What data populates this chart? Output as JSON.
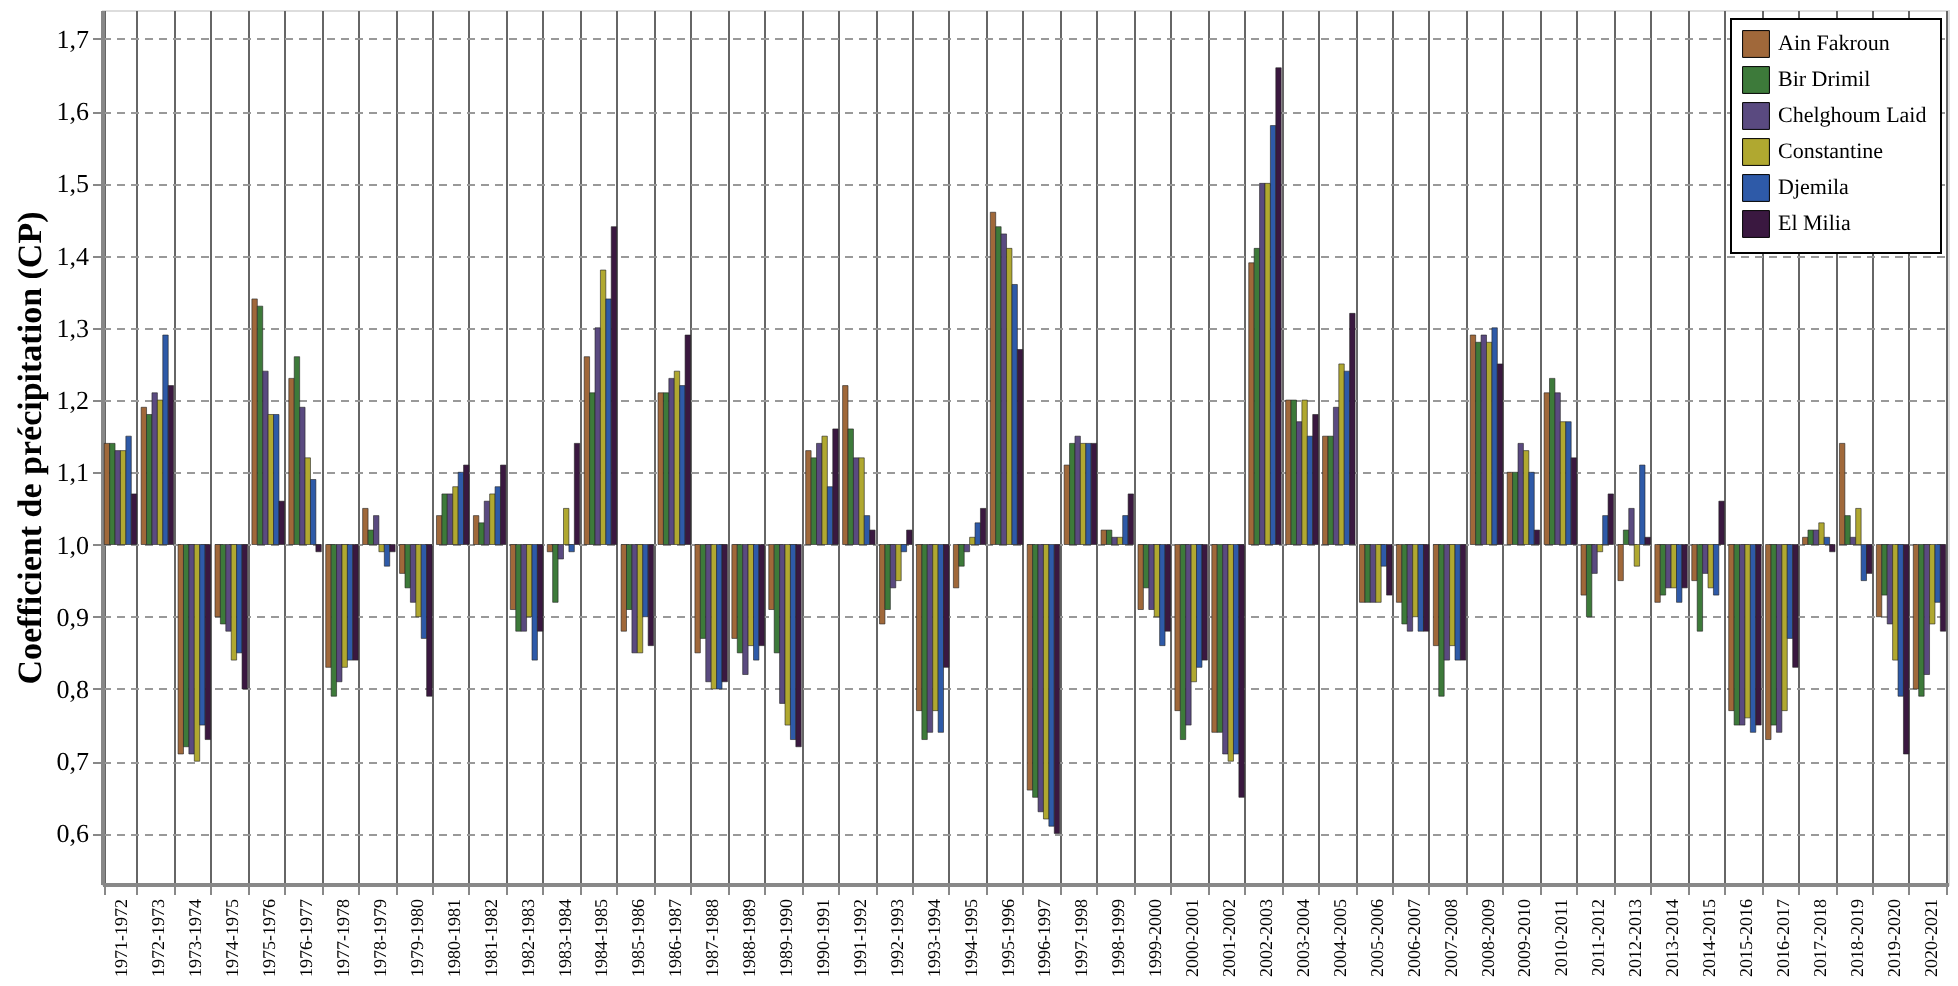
{
  "chart_data": {
    "type": "bar",
    "ylabel": "Coefficient de précipitation (CP)",
    "categories": [
      "1971-1972",
      "1972-1973",
      "1973-1974",
      "1974-1975",
      "1975-1976",
      "1976-1977",
      "1977-1978",
      "1978-1979",
      "1979-1980",
      "1980-1981",
      "1981-1982",
      "1982-1983",
      "1983-1984",
      "1984-1985",
      "1985-1986",
      "1986-1987",
      "1987-1988",
      "1988-1989",
      "1989-1990",
      "1990-1991",
      "1991-1992",
      "1992-1993",
      "1993-1994",
      "1994-1995",
      "1995-1996",
      "1996-1997",
      "1997-1998",
      "1998-1999",
      "1999-2000",
      "2000-2001",
      "2001-2002",
      "2002-2003",
      "2003-2004",
      "2004-2005",
      "2005-2006",
      "2006-2007",
      "2007-2008",
      "2008-2009",
      "2009-2010",
      "2010-2011",
      "2011-2012",
      "2012-2013",
      "2013-2014",
      "2014-2015",
      "2015-2016",
      "2016-2017",
      "2017-2018",
      "2018-2019",
      "2019-2020",
      "2020-2021"
    ],
    "series": [
      {
        "name": "Ain Fakroun",
        "color": "#a0683a",
        "base": [
          1,
          1,
          1,
          1,
          1,
          1,
          1,
          1,
          1,
          1,
          1,
          1,
          1,
          1,
          1,
          1,
          1,
          1,
          1,
          1,
          1,
          1,
          1,
          1,
          1,
          1,
          1,
          1,
          1,
          1,
          1,
          1,
          1,
          1,
          1,
          1,
          1,
          1,
          1,
          1,
          1,
          1,
          1,
          1,
          1,
          1,
          1,
          1,
          1,
          1
        ],
        "values": [
          0.14,
          0.19,
          -0.29,
          -0.1,
          0.34,
          0.23,
          -0.17,
          0.05,
          -0.04,
          0.04,
          0.04,
          -0.09,
          -0.01,
          0.26,
          -0.12,
          0.21,
          -0.15,
          -0.13,
          -0.09,
          0.13,
          0.22,
          -0.11,
          -0.23,
          -0.06,
          0.46,
          -0.34,
          0.11,
          0.02,
          -0.09,
          -0.23,
          -0.26,
          0.39,
          0.2,
          0.15,
          -0.08,
          -0.08,
          -0.14,
          0.29,
          0.1,
          0.21,
          -0.07,
          -0.05,
          -0.08,
          -0.05,
          -0.23,
          -0.27,
          0.01,
          0.14,
          -0.1,
          -0.2
        ]
      },
      {
        "name": "Bir Drimil",
        "color": "#3d7a3a",
        "base": [
          1,
          1,
          1,
          1,
          1,
          1,
          1,
          1,
          1,
          1,
          1,
          1,
          1,
          1,
          1,
          1,
          1,
          1,
          1,
          1,
          1,
          1,
          1,
          1,
          1,
          1,
          1,
          1,
          1,
          1,
          1,
          1,
          1,
          1,
          1,
          1,
          1,
          1,
          1,
          1,
          1,
          1,
          1,
          1,
          1,
          1,
          1,
          1,
          1,
          1
        ],
        "values": [
          0.14,
          0.18,
          -0.28,
          -0.11,
          0.33,
          0.26,
          -0.21,
          0.02,
          -0.06,
          0.07,
          0.03,
          -0.12,
          -0.08,
          0.21,
          -0.09,
          0.21,
          -0.13,
          -0.15,
          -0.15,
          0.12,
          0.16,
          -0.09,
          -0.27,
          -0.03,
          0.44,
          -0.35,
          0.14,
          0.02,
          -0.06,
          -0.27,
          -0.26,
          0.41,
          0.2,
          0.15,
          -0.08,
          -0.11,
          -0.21,
          0.28,
          0.1,
          0.23,
          -0.1,
          0.02,
          -0.07,
          -0.12,
          -0.25,
          -0.25,
          0.02,
          0.04,
          -0.07,
          -0.21
        ]
      },
      {
        "name": "Chelghoum Laid",
        "color": "#5a4a80",
        "base": [
          1,
          1,
          1,
          1,
          1,
          1,
          1,
          1,
          1,
          1,
          1,
          1,
          1,
          1,
          1,
          1,
          1,
          1,
          1,
          1,
          1,
          1,
          1,
          1,
          1,
          1,
          1,
          1,
          1,
          1,
          1,
          1,
          1,
          1,
          1,
          1,
          1,
          1,
          1,
          1,
          1,
          1,
          1,
          1,
          1,
          1,
          1,
          1,
          1,
          1
        ],
        "values": [
          0.13,
          0.21,
          -0.29,
          -0.12,
          0.24,
          0.19,
          -0.19,
          0.04,
          -0.08,
          0.07,
          0.06,
          -0.12,
          -0.02,
          0.3,
          -0.15,
          0.23,
          -0.19,
          -0.18,
          -0.22,
          0.14,
          0.12,
          -0.06,
          -0.26,
          -0.01,
          0.43,
          -0.37,
          0.15,
          0.01,
          -0.09,
          -0.25,
          -0.29,
          0.5,
          0.17,
          0.19,
          -0.08,
          -0.12,
          -0.16,
          0.29,
          0.14,
          0.21,
          -0.04,
          0.05,
          -0.06,
          -0.04,
          -0.25,
          -0.26,
          0.02,
          0.01,
          -0.11,
          -0.18
        ]
      },
      {
        "name": "Constantine",
        "color": "#b0a830",
        "base": [
          1,
          1,
          1,
          1,
          1,
          1,
          1,
          1,
          1,
          1,
          1,
          1,
          1,
          1,
          1,
          1,
          1,
          1,
          1,
          1,
          1,
          1,
          1,
          1,
          1,
          1,
          1,
          1,
          1,
          1,
          1,
          1,
          1,
          1,
          1,
          1,
          1,
          1,
          1,
          1,
          1,
          1,
          1,
          1,
          1,
          1,
          1,
          1,
          1,
          1
        ],
        "values": [
          0.13,
          0.2,
          -0.3,
          -0.16,
          0.18,
          0.12,
          -0.17,
          -0.01,
          -0.1,
          0.08,
          0.07,
          -0.1,
          0.05,
          0.38,
          -0.15,
          0.24,
          -0.2,
          -0.14,
          -0.25,
          0.15,
          0.12,
          -0.05,
          -0.23,
          0.01,
          0.41,
          -0.38,
          0.14,
          0.01,
          -0.1,
          -0.19,
          -0.3,
          0.5,
          0.2,
          0.25,
          -0.08,
          -0.1,
          -0.14,
          0.28,
          0.13,
          0.17,
          -0.01,
          -0.03,
          -0.06,
          -0.06,
          -0.24,
          -0.23,
          0.03,
          0.05,
          -0.16,
          -0.11
        ]
      },
      {
        "name": "Djemila",
        "color": "#2e5aa8",
        "base": [
          1,
          1,
          1,
          1,
          1,
          1,
          1,
          1,
          1,
          1,
          1,
          1,
          1,
          1,
          1,
          1,
          1,
          1,
          1,
          1,
          1,
          1,
          1,
          1,
          1,
          1,
          1,
          1,
          1,
          1,
          1,
          1,
          1,
          1,
          1,
          1,
          1,
          1,
          1,
          1,
          1,
          1,
          1,
          1,
          1,
          1,
          1,
          1,
          1,
          1
        ],
        "values": [
          0.15,
          0.29,
          -0.25,
          -0.15,
          0.18,
          0.09,
          -0.16,
          -0.03,
          -0.13,
          0.1,
          0.08,
          -0.16,
          -0.01,
          0.34,
          -0.1,
          0.22,
          -0.2,
          -0.16,
          -0.27,
          0.08,
          0.04,
          -0.01,
          -0.26,
          0.03,
          0.36,
          -0.39,
          0.14,
          0.04,
          -0.14,
          -0.17,
          -0.29,
          0.58,
          0.15,
          0.24,
          -0.03,
          -0.12,
          -0.16,
          0.3,
          0.1,
          0.17,
          0.04,
          0.11,
          -0.08,
          -0.07,
          -0.26,
          -0.13,
          0.01,
          -0.05,
          -0.21,
          -0.08
        ]
      },
      {
        "name": "El Milia",
        "color": "#3a1840",
        "base": [
          1,
          1,
          1,
          1,
          1,
          1,
          1,
          1,
          1,
          1,
          1,
          1,
          1,
          1,
          1,
          1,
          1,
          1,
          1,
          1,
          1,
          1,
          1,
          1,
          1,
          1,
          1,
          1,
          1,
          1,
          1,
          1,
          1,
          1,
          1,
          1,
          1,
          1,
          1,
          1,
          1,
          1,
          1,
          1,
          1,
          1,
          1,
          1,
          1,
          1
        ],
        "values": [
          0.07,
          0.22,
          -0.27,
          -0.2,
          0.06,
          -0.01,
          -0.16,
          -0.01,
          -0.21,
          0.11,
          0.11,
          -0.12,
          0.14,
          0.44,
          -0.14,
          0.29,
          -0.19,
          -0.14,
          -0.28,
          0.16,
          0.02,
          0.02,
          -0.17,
          0.05,
          0.27,
          -0.4,
          0.14,
          0.07,
          -0.12,
          -0.16,
          -0.35,
          0.66,
          0.18,
          0.32,
          -0.07,
          -0.12,
          -0.16,
          0.25,
          0.02,
          0.12,
          0.07,
          0.01,
          -0.06,
          0.06,
          -0.25,
          -0.17,
          -0.01,
          -0.04,
          -0.29,
          -0.12
        ]
      }
    ],
    "ylim": [
      0.53,
      1.74
    ],
    "yticks": [
      {
        "value": 0.6,
        "label": "0,6"
      },
      {
        "value": 0.7,
        "label": "0,7"
      },
      {
        "value": 0.8,
        "label": "0,8"
      },
      {
        "value": 0.9,
        "label": "0,9"
      },
      {
        "value": 1.0,
        "label": "1,0"
      },
      {
        "value": 1.1,
        "label": "1,1"
      },
      {
        "value": 1.2,
        "label": "1,2"
      },
      {
        "value": 1.3,
        "label": "1,3"
      },
      {
        "value": 1.4,
        "label": "1,4"
      },
      {
        "value": 1.5,
        "label": "1,5"
      },
      {
        "value": 1.6,
        "label": "1,6"
      },
      {
        "value": 1.7,
        "label": "1,7"
      }
    ],
    "grid": true,
    "legend": "top right"
  }
}
